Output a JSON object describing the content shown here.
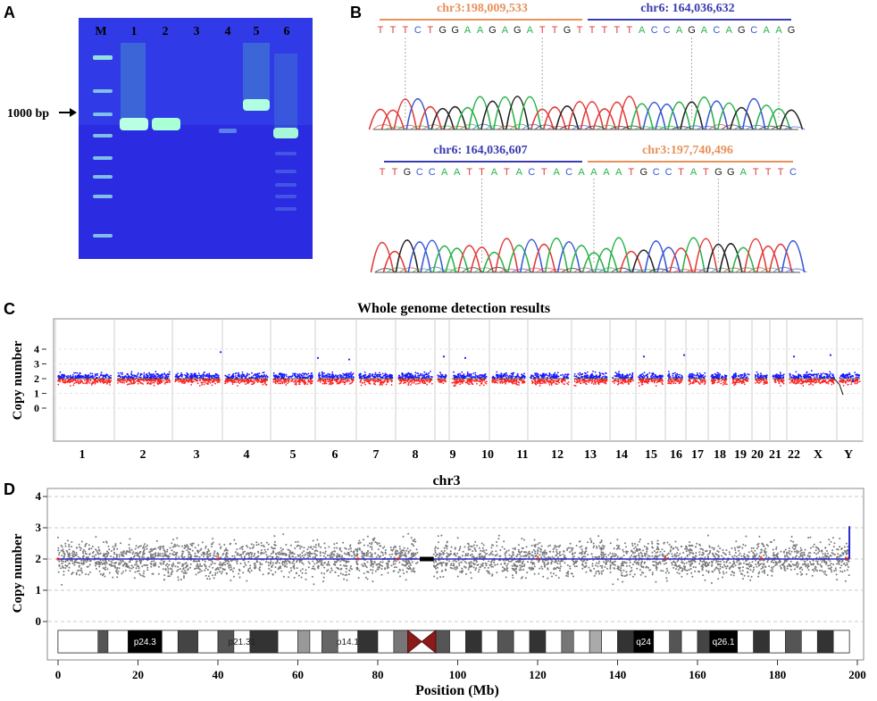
{
  "panels": {
    "a": {
      "label": "A",
      "lanes": [
        "M",
        "1",
        "2",
        "3",
        "4",
        "5",
        "6"
      ],
      "marker_text": "1000 bp",
      "gel_color": "#2a2ee0"
    },
    "b": {
      "label": "B",
      "top_left_locus": "chr3:198,009,533",
      "top_right_locus": "chr6: 164,036,632",
      "bottom_left_locus": "chr6: 164,036,607",
      "bottom_right_locus": "chr3:197,740,496",
      "top_sequence": "TTTCTGGAAGAGATTGTTTTTACCAGACAGCAAG",
      "bottom_sequence": "TTGCCAATTATACTACAAAATGCCTATGGATTTC",
      "chr3_color": "#e8915a",
      "chr6_color": "#3b3bb0"
    },
    "c": {
      "label": "C",
      "title": "Whole genome detection results",
      "ylabel": "Copy number",
      "yticks": [
        "0",
        "1",
        "2",
        "3",
        "4"
      ],
      "chromosomes": [
        "1",
        "2",
        "3",
        "4",
        "5",
        "6",
        "7",
        "8",
        "9",
        "10",
        "11",
        "12",
        "13",
        "14",
        "15",
        "16",
        "17",
        "18",
        "19",
        "20",
        "21",
        "22",
        "X",
        "Y"
      ]
    },
    "d": {
      "label": "D",
      "title": "chr3",
      "ylabel": "Copy number",
      "xlabel": "Position (Mb)",
      "yticks": [
        "0",
        "1",
        "2",
        "3",
        "4"
      ],
      "xticks": [
        "0",
        "20",
        "40",
        "60",
        "80",
        "100",
        "120",
        "140",
        "160",
        "180",
        "200"
      ],
      "bands": [
        "p24.3",
        "p21.31",
        "p14.1",
        "q24",
        "q26.1"
      ]
    }
  },
  "chart_data": [
    {
      "type": "scatter",
      "title": "Whole genome detection results",
      "ylabel": "Copy number",
      "categories": [
        "1",
        "2",
        "3",
        "4",
        "5",
        "6",
        "7",
        "8",
        "9",
        "10",
        "11",
        "12",
        "13",
        "14",
        "15",
        "16",
        "17",
        "18",
        "19",
        "20",
        "21",
        "22",
        "X",
        "Y"
      ],
      "ylim": [
        0,
        4
      ],
      "series": [
        {
          "values": [
            2,
            2,
            2,
            2,
            2,
            2,
            2,
            2,
            2,
            2,
            2,
            2,
            2,
            2,
            2,
            2,
            2,
            2,
            2,
            2,
            2,
            2,
            2,
            2
          ]
        }
      ]
    },
    {
      "type": "scatter",
      "title": "chr3",
      "xlabel": "Position (Mb)",
      "ylabel": "Copy number",
      "xlim": [
        0,
        200
      ],
      "ylim": [
        0,
        4
      ],
      "series": [
        {
          "x": [
            0,
            198
          ],
          "values": [
            2,
            2
          ]
        }
      ]
    }
  ]
}
